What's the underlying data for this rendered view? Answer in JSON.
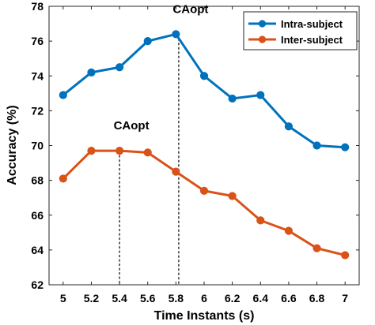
{
  "chart_data": {
    "type": "line",
    "xlabel": "Time Instants (s)",
    "ylabel": "Accuracy (%)",
    "x": [
      5,
      5.2,
      5.4,
      5.6,
      5.8,
      6,
      6.2,
      6.4,
      6.6,
      6.8,
      7
    ],
    "x_tick_labels": [
      "5",
      "5.2",
      "5.4",
      "5.6",
      "5.8",
      "6",
      "6.2",
      "6.4",
      "6.6",
      "6.8",
      "7"
    ],
    "xlim": [
      4.9,
      7.1
    ],
    "ylim": [
      62,
      78
    ],
    "y_ticks": [
      62,
      64,
      66,
      68,
      70,
      72,
      74,
      76,
      78
    ],
    "grid": false,
    "legend": "top-right",
    "series": [
      {
        "name": "Intra-subject",
        "color": "#0072BD",
        "values": [
          72.9,
          74.2,
          74.5,
          76.0,
          76.4,
          74.0,
          72.7,
          72.9,
          71.1,
          70.0,
          69.9
        ]
      },
      {
        "name": "Inter-subject",
        "color": "#D95319",
        "values": [
          68.1,
          69.7,
          69.7,
          69.6,
          68.5,
          67.4,
          67.1,
          65.7,
          65.1,
          64.1,
          63.7
        ]
      }
    ],
    "annotations": [
      {
        "text": "CAopt",
        "x": 5.82,
        "y": 76.4,
        "series": "Intra-subject"
      },
      {
        "text": "CAopt",
        "x": 5.4,
        "y": 69.7,
        "series": "Inter-subject"
      }
    ]
  }
}
